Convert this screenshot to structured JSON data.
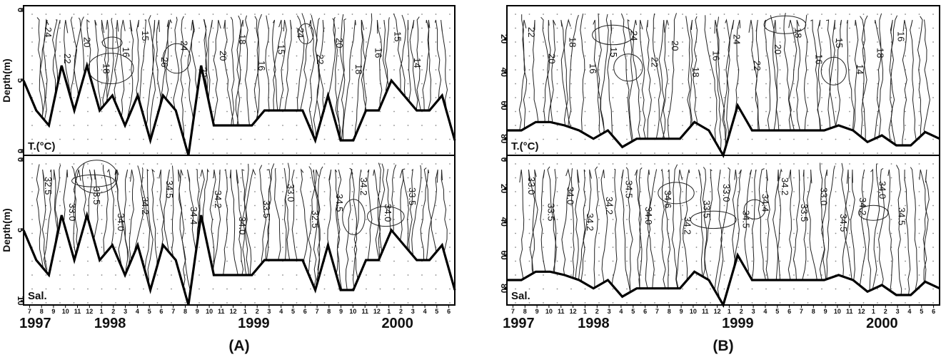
{
  "chart_data": [
    {
      "type": "line",
      "panel": "(A)",
      "x_years": [
        "1997",
        "1998",
        "1999",
        "2000"
      ],
      "month_ticks": [
        "7",
        "8",
        "9",
        "10",
        "11",
        "12",
        "1",
        "2",
        "3",
        "4",
        "5",
        "6",
        "7",
        "8",
        "9",
        "10",
        "11",
        "12",
        "1",
        "2",
        "3",
        "4",
        "5",
        "6",
        "7",
        "8",
        "9",
        "10",
        "11",
        "12",
        "1",
        "2",
        "3",
        "4",
        "5",
        "6"
      ],
      "subplots": [
        {
          "name": "T.(°C)",
          "ylabel": "Depth(m)",
          "yticks": [
            "0",
            "5",
            "0"
          ],
          "ylim": [
            10,
            0
          ],
          "contour_labels": [
            "24",
            "22",
            "20",
            "18",
            "16",
            "15",
            "26",
            "24",
            "22",
            "20",
            "18",
            "16",
            "15",
            "24",
            "22",
            "20",
            "18",
            "16",
            "15",
            "14"
          ],
          "bottom_depth": [
            5,
            7,
            8,
            4,
            7,
            4,
            7,
            6,
            8,
            6,
            9,
            6,
            7,
            10,
            4,
            8,
            8,
            8,
            8,
            7,
            7,
            7,
            7,
            9,
            6,
            9,
            9,
            7,
            7,
            5,
            6,
            7,
            7,
            6,
            9
          ]
        },
        {
          "name": "Sal.",
          "ylabel": "Depth(m)",
          "yticks": [
            "0",
            "5",
            "10"
          ],
          "ylim": [
            10,
            0
          ],
          "contour_labels": [
            "32.5",
            "33.0",
            "33.5",
            "34.0",
            "34.2",
            "34.5",
            "34.4",
            "34.2",
            "34.0",
            "33.5",
            "33.0",
            "32.5",
            "34.5",
            "34.2",
            "34.0",
            "33.5"
          ],
          "bottom_depth": [
            5,
            7,
            8,
            4,
            7,
            4,
            7,
            6,
            8,
            6,
            9,
            6,
            7,
            10,
            4,
            8,
            8,
            8,
            8,
            7,
            7,
            7,
            7,
            9,
            6,
            9,
            9,
            7,
            7,
            5,
            6,
            7,
            7,
            6,
            9
          ]
        }
      ]
    },
    {
      "type": "line",
      "panel": "(B)",
      "x_years": [
        "1997",
        "1998",
        "1999",
        "2000"
      ],
      "month_ticks": [
        "7",
        "8",
        "9",
        "10",
        "11",
        "12",
        "1",
        "2",
        "3",
        "4",
        "5",
        "6",
        "7",
        "8",
        "9",
        "10",
        "11",
        "12",
        "1",
        "2",
        "3",
        "4",
        "5",
        "6",
        "7",
        "8",
        "9",
        "10",
        "11",
        "12",
        "1",
        "2",
        "3",
        "4",
        "5",
        "6"
      ],
      "subplots": [
        {
          "name": "T.(°C)",
          "ylabel": "",
          "yticks": [
            "20",
            "40",
            "60",
            "80"
          ],
          "ylim": [
            90,
            0
          ],
          "contour_labels": [
            "22",
            "20",
            "18",
            "16",
            "15",
            "24",
            "22",
            "20",
            "18",
            "16",
            "24",
            "22",
            "20",
            "18",
            "16",
            "15",
            "14",
            "18",
            "16"
          ],
          "bottom_depth": [
            75,
            75,
            70,
            70,
            72,
            75,
            80,
            75,
            85,
            80,
            80,
            80,
            80,
            70,
            75,
            90,
            60,
            75,
            75,
            75,
            75,
            75,
            75,
            72,
            75,
            82,
            78,
            84,
            84,
            76,
            80
          ]
        },
        {
          "name": "Sal.",
          "ylabel": "",
          "yticks": [
            "0",
            "20",
            "40",
            "60",
            "80"
          ],
          "ylim": [
            90,
            0
          ],
          "contour_labels": [
            "33.0",
            "33.5",
            "34.0",
            "34.2",
            "34.2",
            "34.5",
            "34.0",
            "34.6",
            "34.2",
            "33.5",
            "33.0",
            "34.5",
            "34.4",
            "34.2",
            "33.5",
            "33.0",
            "34.5",
            "34.2",
            "34.0",
            "34.5"
          ],
          "bottom_depth": [
            75,
            75,
            70,
            70,
            72,
            75,
            80,
            75,
            85,
            80,
            80,
            80,
            80,
            70,
            75,
            90,
            60,
            75,
            75,
            75,
            75,
            75,
            75,
            72,
            75,
            82,
            78,
            84,
            84,
            76,
            80
          ]
        }
      ]
    }
  ]
}
